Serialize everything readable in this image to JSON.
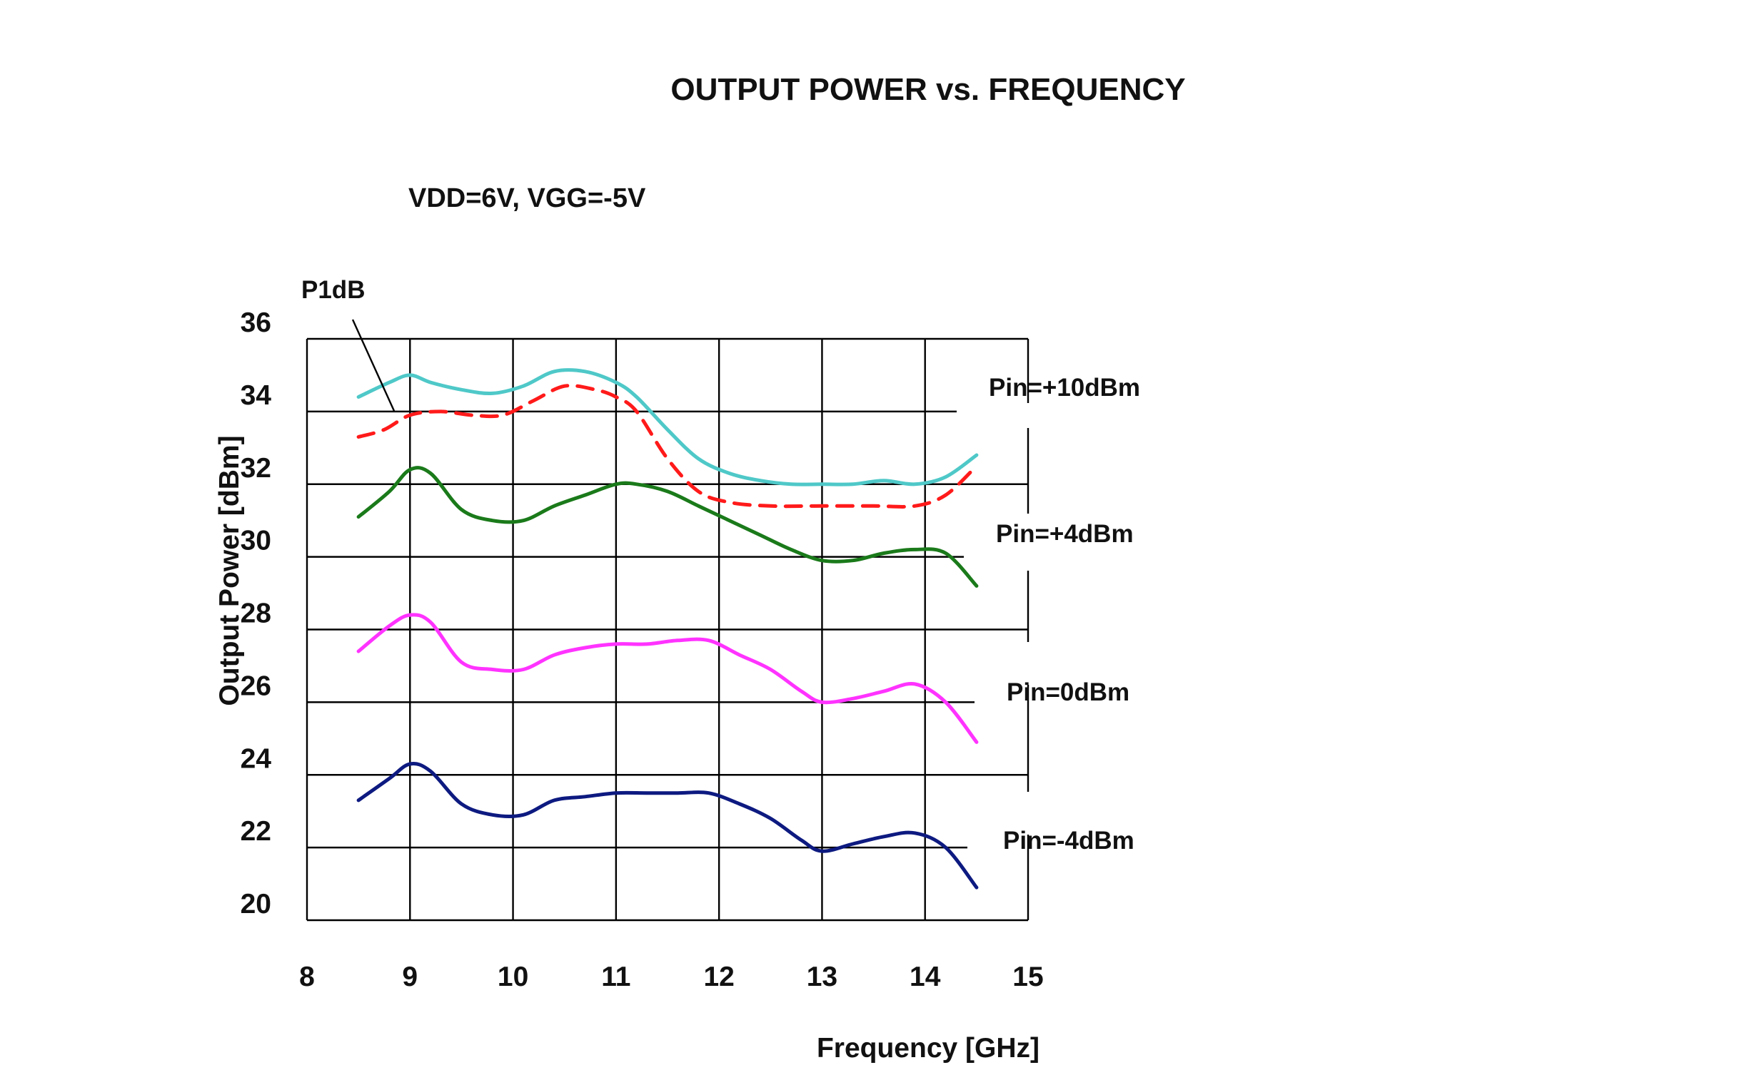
{
  "chart_data": {
    "type": "line",
    "title": "OUTPUT POWER vs. FREQUENCY",
    "subtitle": "VDD=6V, VGG=-5V",
    "xlabel": "Frequency [GHz]",
    "ylabel": "Output Power [dBm]",
    "xlim": [
      8,
      15
    ],
    "ylim": [
      20,
      36
    ],
    "xticks": [
      "8",
      "9",
      "10",
      "11",
      "12",
      "13",
      "14",
      "15"
    ],
    "yticks": [
      "20",
      "22",
      "24",
      "26",
      "28",
      "30",
      "32",
      "34",
      "36"
    ],
    "grid": true,
    "annotation": "P1dB",
    "series": [
      {
        "name": "Pin=+10dBm",
        "color": "#4fc8c8",
        "style": "solid",
        "x": [
          8.5,
          8.8,
          9.0,
          9.2,
          9.5,
          9.8,
          10.1,
          10.4,
          10.7,
          11.0,
          11.2,
          11.5,
          11.8,
          12.1,
          12.4,
          12.7,
          13.0,
          13.3,
          13.6,
          13.9,
          14.2,
          14.5
        ],
        "y": [
          34.4,
          34.8,
          35.0,
          34.8,
          34.6,
          34.5,
          34.7,
          35.1,
          35.1,
          34.8,
          34.4,
          33.5,
          32.7,
          32.3,
          32.1,
          32.0,
          32.0,
          32.0,
          32.1,
          32.0,
          32.2,
          32.8
        ]
      },
      {
        "name": "P1dB",
        "color": "#ff1a1a",
        "style": "dashed",
        "x": [
          8.5,
          8.75,
          9.0,
          9.3,
          9.6,
          9.9,
          10.2,
          10.5,
          10.8,
          11.0,
          11.2,
          11.5,
          11.8,
          12.1,
          12.5,
          13.0,
          13.5,
          13.9,
          14.2,
          14.5
        ],
        "y": [
          33.3,
          33.5,
          33.9,
          34.0,
          33.9,
          33.9,
          34.3,
          34.7,
          34.6,
          34.4,
          34.0,
          32.7,
          31.8,
          31.5,
          31.4,
          31.4,
          31.4,
          31.4,
          31.7,
          32.5
        ]
      },
      {
        "name": "Pin=+4dBm",
        "color": "#1a7a1a",
        "style": "solid",
        "x": [
          8.5,
          8.8,
          9.0,
          9.2,
          9.5,
          9.8,
          10.1,
          10.4,
          10.7,
          11.0,
          11.2,
          11.5,
          11.8,
          12.1,
          12.4,
          12.7,
          13.0,
          13.3,
          13.6,
          13.9,
          14.2,
          14.5
        ],
        "y": [
          31.1,
          31.8,
          32.4,
          32.3,
          31.3,
          31.0,
          31.0,
          31.4,
          31.7,
          32.0,
          32.0,
          31.8,
          31.4,
          31.0,
          30.6,
          30.2,
          29.9,
          29.9,
          30.1,
          30.2,
          30.1,
          29.2
        ]
      },
      {
        "name": "Pin=0dBm",
        "color": "#ff33ff",
        "style": "solid",
        "x": [
          8.5,
          8.8,
          9.0,
          9.2,
          9.5,
          9.8,
          10.1,
          10.4,
          10.7,
          11.0,
          11.3,
          11.6,
          11.9,
          12.2,
          12.5,
          12.8,
          13.0,
          13.3,
          13.6,
          13.9,
          14.2,
          14.5
        ],
        "y": [
          27.4,
          28.1,
          28.4,
          28.2,
          27.1,
          26.9,
          26.9,
          27.3,
          27.5,
          27.6,
          27.6,
          27.7,
          27.7,
          27.3,
          26.9,
          26.3,
          26.0,
          26.1,
          26.3,
          26.5,
          26.0,
          24.9
        ]
      },
      {
        "name": "Pin=-4dBm",
        "color": "#0d1a80",
        "style": "solid",
        "x": [
          8.5,
          8.8,
          9.0,
          9.2,
          9.5,
          9.8,
          10.1,
          10.4,
          10.7,
          11.0,
          11.3,
          11.6,
          11.9,
          12.2,
          12.5,
          12.8,
          13.0,
          13.3,
          13.6,
          13.9,
          14.2,
          14.5
        ],
        "y": [
          23.3,
          23.9,
          24.3,
          24.1,
          23.2,
          22.9,
          22.9,
          23.3,
          23.4,
          23.5,
          23.5,
          23.5,
          23.5,
          23.2,
          22.8,
          22.2,
          21.9,
          22.1,
          22.3,
          22.4,
          22.0,
          20.9
        ]
      }
    ]
  }
}
